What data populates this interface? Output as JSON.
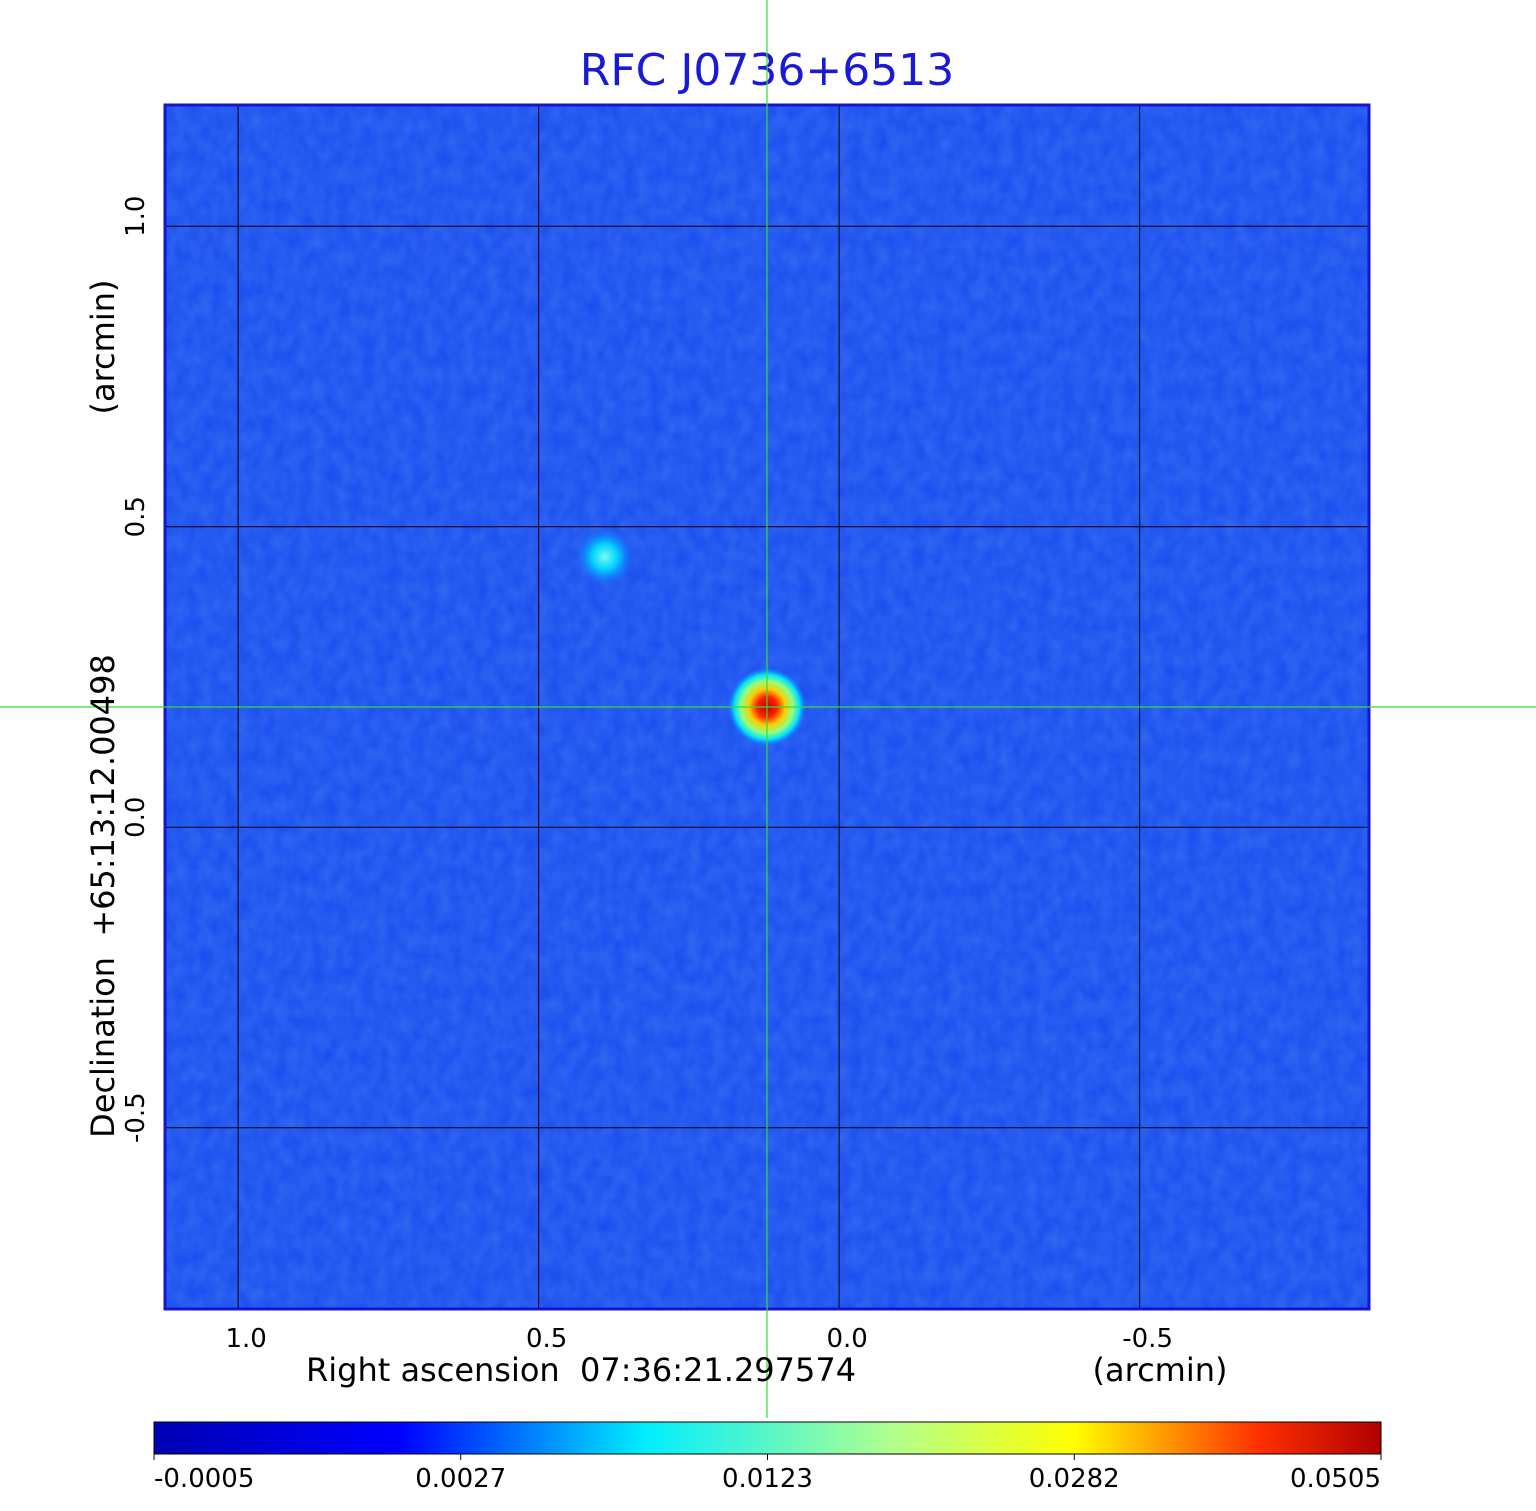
{
  "chart_data": {
    "type": "heatmap",
    "title": "RFC J0736+6513",
    "xlabel": "Right ascension  07:36:21.297574",
    "xunit": "(arcmin)",
    "ylabel": "Declination  +65:13:12.00498",
    "yunit": "(arcmin)",
    "xlim": [
      1.12,
      -0.88
    ],
    "ylim": [
      -0.8,
      1.2
    ],
    "x_ticks": [
      1.0,
      0.5,
      0.0,
      -0.5
    ],
    "x_tick_labels": [
      "1.0",
      "0.5",
      "0.0",
      "-0.5"
    ],
    "y_ticks": [
      1.0,
      0.5,
      0.0,
      -0.5
    ],
    "y_tick_labels": [
      "1.0",
      "0.5",
      "0.0",
      "-0.5"
    ],
    "grid": true,
    "crosshair": {
      "x": 0.12,
      "y": 0.2,
      "color": "#33dd33"
    },
    "sources": [
      {
        "x": 0.12,
        "y": 0.2,
        "peak": 0.0505
      },
      {
        "x": 0.39,
        "y": 0.45,
        "peak": 0.0045
      }
    ],
    "colorbar": {
      "ticks": [
        "-0.0005",
        "0.0027",
        "0.0123",
        "0.0282",
        "0.0505"
      ],
      "colors": [
        "#0000b4",
        "#0000ff",
        "#00eeff",
        "#ffff00",
        "#ff0000",
        "#b00000"
      ]
    },
    "colors": {
      "title": "#1a1ad6",
      "frame": "#1515d0",
      "grid": "#000000"
    }
  }
}
